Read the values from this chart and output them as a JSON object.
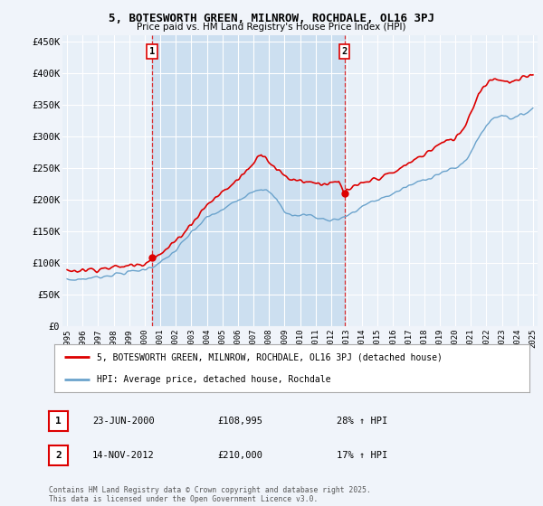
{
  "title": "5, BOTESWORTH GREEN, MILNROW, ROCHDALE, OL16 3PJ",
  "subtitle": "Price paid vs. HM Land Registry's House Price Index (HPI)",
  "legend_line1": "5, BOTESWORTH GREEN, MILNROW, ROCHDALE, OL16 3PJ (detached house)",
  "legend_line2": "HPI: Average price, detached house, Rochdale",
  "annotation1_date": "23-JUN-2000",
  "annotation1_price": "£108,995",
  "annotation1_hpi": "28% ↑ HPI",
  "annotation2_date": "14-NOV-2012",
  "annotation2_price": "£210,000",
  "annotation2_hpi": "17% ↑ HPI",
  "footer": "Contains HM Land Registry data © Crown copyright and database right 2025.\nThis data is licensed under the Open Government Licence v3.0.",
  "background_color": "#f0f4fa",
  "plot_bg_color": "#e8f0f8",
  "shade_color": "#ccdff0",
  "grid_color": "#ffffff",
  "red_color": "#dd0000",
  "blue_color": "#6ba3cc",
  "ylim": [
    0,
    460000
  ],
  "yticks": [
    0,
    50000,
    100000,
    150000,
    200000,
    250000,
    300000,
    350000,
    400000,
    450000
  ],
  "year_start": 1995,
  "year_end": 2025,
  "sale1_year": 2000.47,
  "sale1_price": 108995,
  "sale2_year": 2012.87,
  "sale2_price": 210000,
  "hpi_keypoints_x": [
    1995.0,
    1996.0,
    1997.0,
    1998.0,
    1999.0,
    2000.0,
    2001.0,
    2002.0,
    2003.0,
    2004.0,
    2005.0,
    2006.0,
    2007.0,
    2007.5,
    2008.0,
    2008.5,
    2009.0,
    2009.5,
    2010.0,
    2010.5,
    2011.0,
    2011.5,
    2012.0,
    2012.5,
    2013.0,
    2013.5,
    2014.0,
    2015.0,
    2016.0,
    2017.0,
    2018.0,
    2019.0,
    2020.0,
    2020.5,
    2021.0,
    2021.5,
    2022.0,
    2022.5,
    2023.0,
    2023.5,
    2024.0,
    2025.0
  ],
  "hpi_keypoints_y": [
    73000,
    75000,
    78000,
    82000,
    86000,
    90000,
    100000,
    120000,
    148000,
    172000,
    184000,
    200000,
    215000,
    218000,
    212000,
    200000,
    182000,
    175000,
    175000,
    178000,
    172000,
    170000,
    168000,
    170000,
    175000,
    180000,
    190000,
    200000,
    210000,
    222000,
    232000,
    242000,
    250000,
    258000,
    275000,
    298000,
    318000,
    330000,
    335000,
    330000,
    330000,
    345000
  ],
  "prop_keypoints_x": [
    1995.0,
    1996.0,
    1997.0,
    1998.0,
    1999.0,
    2000.0,
    2000.47,
    2001.0,
    2002.0,
    2003.0,
    2004.0,
    2005.0,
    2006.0,
    2007.0,
    2007.5,
    2008.0,
    2008.5,
    2009.0,
    2009.5,
    2010.0,
    2010.5,
    2011.0,
    2011.5,
    2012.0,
    2012.5,
    2012.87,
    2013.0,
    2014.0,
    2015.0,
    2016.0,
    2017.0,
    2018.0,
    2019.0,
    2020.0,
    2020.5,
    2021.0,
    2021.5,
    2022.0,
    2022.5,
    2023.0,
    2023.5,
    2024.0,
    2025.0
  ],
  "prop_keypoints_y": [
    88000,
    89000,
    91000,
    93000,
    96000,
    100000,
    108995,
    113000,
    135000,
    162000,
    192000,
    212000,
    232000,
    258000,
    275000,
    262000,
    248000,
    238000,
    232000,
    232000,
    228000,
    228000,
    225000,
    225000,
    228000,
    210000,
    215000,
    225000,
    235000,
    242000,
    258000,
    272000,
    288000,
    298000,
    312000,
    338000,
    368000,
    385000,
    392000,
    390000,
    385000,
    388000,
    400000
  ]
}
